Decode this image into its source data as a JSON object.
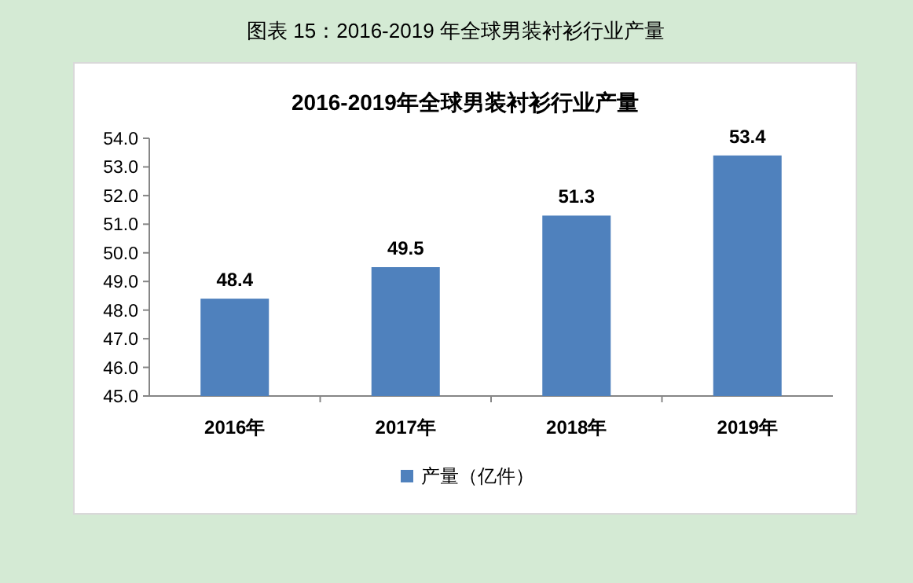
{
  "chart_data": {
    "type": "bar",
    "title": "图表 15：2016-2019 年全球男装衬衫行业产量",
    "subtitle": "2016-2019年全球男装衬衫行业产量",
    "categories": [
      "2016年",
      "2017年",
      "2018年",
      "2019年"
    ],
    "series": [
      {
        "name": "产量（亿件）",
        "color": "#4f81bd",
        "values": [
          48.4,
          49.5,
          51.3,
          53.4
        ]
      }
    ],
    "ylim": [
      45,
      54
    ],
    "yticks": [
      {
        "value": 45,
        "label": "45.0"
      },
      {
        "value": 46,
        "label": "46.0"
      },
      {
        "value": 47,
        "label": "47.0"
      },
      {
        "value": 48,
        "label": "48.0"
      },
      {
        "value": 49,
        "label": "49.0"
      },
      {
        "value": 50,
        "label": "50.0"
      },
      {
        "value": 51,
        "label": "51.0"
      },
      {
        "value": 52,
        "label": "52.0"
      },
      {
        "value": 53,
        "label": "53.0"
      },
      {
        "value": 54,
        "label": "54.0"
      }
    ],
    "data_labels": true,
    "grid": false,
    "legend": "bottom"
  }
}
